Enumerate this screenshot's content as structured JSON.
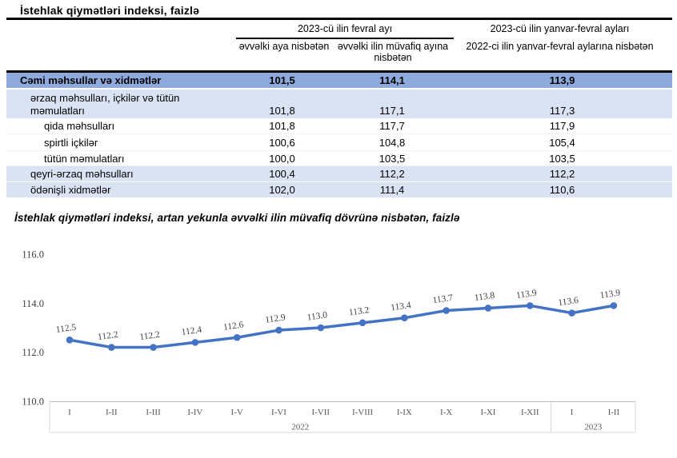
{
  "table": {
    "title": "İstehlak qiymətləri indeksi, faizlə",
    "header": {
      "group1": "2023-cü ilin fevral ayı",
      "group1_sub1": "əvvəlki aya nisbətən",
      "group1_sub2": "əvvəlki ilin müvafiq ayına nisbətən",
      "group2_line1": "2023-cü ilin yanvar-fevral ayları",
      "group2_rest": "2022-ci ilin yanvar-fevral aylarına nisbətən"
    },
    "rows": [
      {
        "label": "Cəmi məhsullar və xidmətlər",
        "values": [
          "101,5",
          "114,1",
          "113,9"
        ],
        "style": "total",
        "indent": 1
      },
      {
        "label": "ərzaq məhsulları, içkilər və tütün məmulatları",
        "values": [
          "101,8",
          "117,1",
          "117,3"
        ],
        "style": "band",
        "indent": 2,
        "two_line": true
      },
      {
        "label": "qida məhsulları",
        "values": [
          "101,8",
          "117,7",
          "117,9"
        ],
        "style": "plain",
        "indent": 3
      },
      {
        "label": "spirtli içkilər",
        "values": [
          "100,6",
          "104,8",
          "105,4"
        ],
        "style": "plain",
        "indent": 3
      },
      {
        "label": "tütün məmulatları",
        "values": [
          "100,0",
          "103,5",
          "103,5"
        ],
        "style": "plain",
        "indent": 3
      },
      {
        "label": "qeyri-ərzaq məhsulları",
        "values": [
          "100,4",
          "112,2",
          "112,2"
        ],
        "style": "band",
        "indent": 2
      },
      {
        "label": "ödənişli xidmətlər",
        "values": [
          "102,0",
          "111,4",
          "110,6"
        ],
        "style": "band",
        "indent": 2
      }
    ],
    "colors": {
      "total_row_bg": "#8EA9DB",
      "band_row_bg": "#DAE3F3"
    }
  },
  "chart_data": {
    "type": "line",
    "title": "İstehlak qiymətləri indeksi, artan yekunla əvvəlki ilin müvafiq dövrünə nisbətən, faizlə",
    "x": [
      "I",
      "I-II",
      "I-III",
      "I-IV",
      "I-V",
      "I-VI",
      "I-VII",
      "I-VIII",
      "I-IX",
      "I-X",
      "I-XI",
      "I-XII",
      "I",
      "I-II"
    ],
    "year_groups": [
      {
        "label": "2022",
        "count": 12
      },
      {
        "label": "2023",
        "count": 2
      }
    ],
    "series": [
      {
        "name": "İstehlak qiymətləri indeksi",
        "values": [
          112.5,
          112.2,
          112.2,
          112.4,
          112.6,
          112.9,
          113.0,
          113.2,
          113.4,
          113.7,
          113.8,
          113.9,
          113.6,
          113.9
        ]
      }
    ],
    "ylim": [
      110.0,
      116.0
    ],
    "yticks": [
      116.0,
      114.0,
      112.0,
      110.0
    ],
    "grid": false,
    "legend": "none",
    "data_labels": true,
    "line_color": "#4472C4",
    "axis_color": "#bfbfbf",
    "tick_label_color": "#3f3f3f",
    "month_label_color": "#595959",
    "data_label_color": "#404040"
  }
}
